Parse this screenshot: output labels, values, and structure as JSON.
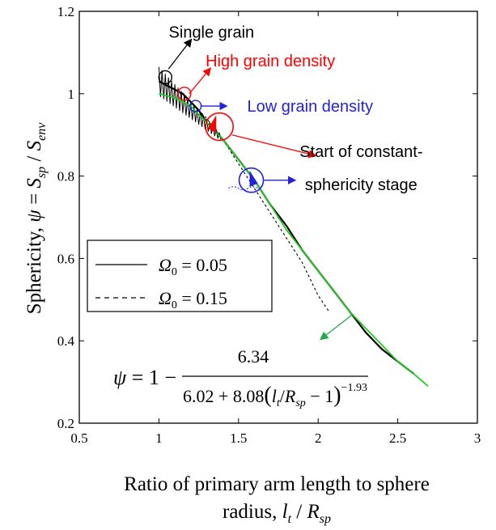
{
  "chart_data": {
    "type": "line",
    "xlim": [
      0.5,
      3
    ],
    "ylim": [
      0.2,
      1.2
    ],
    "xticks": [
      "0.5",
      "1",
      "1.5",
      "2",
      "2.5",
      "3"
    ],
    "yticks": [
      "0.2",
      "0.4",
      "0.6",
      "0.8",
      "1",
      "1.2"
    ],
    "xlabel_line1": "Ratio of primary arm length to sphere",
    "xlabel_line2_text": "radius, ",
    "xlabel_line2_math": "l",
    "xlabel_line2_sub1": "t",
    "xlabel_line2_slash": " / ",
    "xlabel_line2_math2": "R",
    "xlabel_line2_sub2": "sp",
    "ylabel_text": "Sphericity, ",
    "ylabel_psi": "ψ",
    "ylabel_eq": " = ",
    "ylabel_S1": "S",
    "ylabel_sub1": "sp",
    "ylabel_slash": " / ",
    "ylabel_S2": "S",
    "ylabel_sub2": "env",
    "grid": false,
    "legend_position": "center-left",
    "series": [
      {
        "name": "Ω0 = 0.05",
        "label_symbol": "Ω",
        "label_sub": "0",
        "label_value": " = 0.05",
        "style": "solid",
        "color": "#000000",
        "x": [
          1.0,
          1.05,
          1.1,
          1.15,
          1.2,
          1.25,
          1.3,
          1.35,
          1.4,
          1.5,
          1.6,
          1.7,
          1.8,
          1.9,
          2.0,
          2.1,
          2.2,
          2.3,
          2.4,
          2.5,
          2.6
        ],
        "y": [
          1.03,
          1.02,
          1.01,
          1.0,
          0.98,
          0.96,
          0.93,
          0.91,
          0.89,
          0.84,
          0.79,
          0.73,
          0.68,
          0.62,
          0.57,
          0.52,
          0.47,
          0.42,
          0.38,
          0.35,
          0.32
        ]
      },
      {
        "name": "Ω0 = 0.15",
        "label_symbol": "Ω",
        "label_sub": "0",
        "label_value": " = 0.15",
        "style": "dashed",
        "color": "#000000",
        "x": [
          1.0,
          1.1,
          1.2,
          1.3,
          1.4,
          1.5,
          1.6,
          1.7,
          1.8,
          1.9,
          2.0,
          2.07
        ],
        "y": [
          1.03,
          1.01,
          0.98,
          0.94,
          0.89,
          0.83,
          0.77,
          0.71,
          0.65,
          0.59,
          0.51,
          0.47
        ]
      },
      {
        "name": "fit",
        "style": "solid",
        "color": "#22cc22",
        "x": [
          1.0,
          1.1,
          1.2,
          1.3,
          1.4,
          1.5,
          1.6,
          1.7,
          1.8,
          1.9,
          2.0,
          2.1,
          2.2,
          2.3,
          2.4,
          2.5,
          2.6,
          2.69
        ],
        "y": [
          1.0,
          0.99,
          0.97,
          0.93,
          0.89,
          0.84,
          0.79,
          0.73,
          0.67,
          0.62,
          0.57,
          0.52,
          0.47,
          0.43,
          0.39,
          0.35,
          0.32,
          0.29
        ]
      }
    ],
    "annotations": [
      {
        "key": "single",
        "text": "Single grain",
        "color": "#000000",
        "marker": [
          1.04,
          1.04
        ],
        "text_pos": [
          1.33,
          1.15
        ]
      },
      {
        "key": "high",
        "text": "High grain density",
        "color": "#ff0000",
        "marker": [
          1.16,
          1.0
        ],
        "text_pos": [
          1.7,
          1.08
        ]
      },
      {
        "key": "low",
        "text": "Low grain density",
        "color": "#2222dd",
        "marker": [
          1.23,
          0.97
        ],
        "text_pos": [
          1.95,
          0.97
        ]
      },
      {
        "key": "start1",
        "text": "Start of constant-",
        "color": "#000000",
        "marker": [
          1.38,
          0.92
        ],
        "text_pos": [
          2.27,
          0.86
        ]
      },
      {
        "key": "start2",
        "text": "sphericity stage",
        "color": "#000000",
        "text_pos": [
          2.27,
          0.78
        ]
      }
    ],
    "equation": {
      "lhs": "ψ",
      "eq": " = 1 − ",
      "numerator": "6.34",
      "den_pre": "6.02 + 8.08",
      "den_l": "l",
      "den_lsub": "t",
      "den_slash": "/",
      "den_R": "R",
      "den_Rsub": "sp",
      "den_post": " − 1",
      "exponent": "−1.93"
    }
  }
}
